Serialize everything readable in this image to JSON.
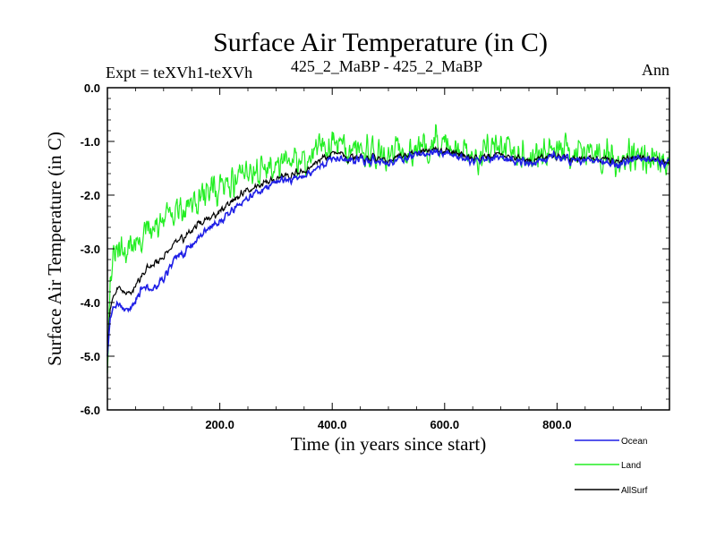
{
  "chart_data": {
    "type": "line",
    "title": "Surface Air Temperature (in C)",
    "subtitle_left": "Expt = teXVh1-teXVh",
    "subtitle_center": "425_2_MaBP - 425_2_MaBP",
    "subtitle_right": "Ann",
    "xlabel": "Time (in years since start)",
    "ylabel": "Surface Air Temperature (in C)",
    "xlim": [
      0,
      1000
    ],
    "ylim": [
      -6.0,
      0.0
    ],
    "xticks": [
      200,
      400,
      600,
      800
    ],
    "xtick_labels": [
      "200.0",
      "400.0",
      "600.0",
      "800.0"
    ],
    "yticks": [
      0,
      -1,
      -2,
      -3,
      -4,
      -5,
      -6
    ],
    "ytick_labels": [
      "0.0",
      "-1.0",
      "-2.0",
      "-3.0",
      "-4.0",
      "-5.0",
      "-6.0"
    ],
    "legend_position": "bottom-right, below plot",
    "series": [
      {
        "name": "AllSurf",
        "color": "#000000",
        "x": [
          0,
          5,
          10,
          20,
          30,
          40,
          50,
          60,
          80,
          100,
          120,
          150,
          175,
          200,
          250,
          300,
          350,
          400,
          450,
          500,
          550,
          600,
          650,
          700,
          750,
          800,
          850,
          900,
          950,
          1000
        ],
        "values": [
          -4.9,
          -4.1,
          -3.9,
          -3.75,
          -3.8,
          -3.85,
          -3.7,
          -3.5,
          -3.3,
          -3.15,
          -2.9,
          -2.65,
          -2.45,
          -2.3,
          -1.9,
          -1.7,
          -1.55,
          -1.2,
          -1.3,
          -1.35,
          -1.2,
          -1.15,
          -1.3,
          -1.25,
          -1.35,
          -1.3,
          -1.3,
          -1.35,
          -1.3,
          -1.4
        ]
      },
      {
        "name": "Ocean",
        "color": "#1f1fe6",
        "x": [
          0,
          5,
          10,
          20,
          30,
          40,
          50,
          60,
          80,
          100,
          120,
          150,
          175,
          200,
          250,
          300,
          350,
          400,
          450,
          500,
          550,
          600,
          650,
          700,
          750,
          800,
          850,
          900,
          950,
          1000
        ],
        "values": [
          -5.0,
          -4.3,
          -4.1,
          -4.05,
          -4.1,
          -4.15,
          -4.0,
          -3.7,
          -3.8,
          -3.55,
          -3.2,
          -2.95,
          -2.65,
          -2.5,
          -2.05,
          -1.75,
          -1.65,
          -1.3,
          -1.35,
          -1.4,
          -1.25,
          -1.2,
          -1.35,
          -1.3,
          -1.4,
          -1.3,
          -1.35,
          -1.4,
          -1.3,
          -1.4
        ]
      },
      {
        "name": "Land",
        "color": "#22ee22",
        "x": [
          0,
          5,
          10,
          20,
          30,
          40,
          50,
          60,
          80,
          100,
          120,
          150,
          175,
          200,
          250,
          300,
          350,
          400,
          450,
          500,
          550,
          600,
          650,
          700,
          750,
          800,
          850,
          900,
          950,
          1000
        ],
        "values": [
          -5.2,
          -3.6,
          -3.2,
          -3.1,
          -3.0,
          -2.95,
          -2.9,
          -2.8,
          -2.7,
          -2.45,
          -2.3,
          -2.1,
          -1.95,
          -1.9,
          -1.55,
          -1.45,
          -1.35,
          -1.0,
          -1.2,
          -1.25,
          -1.1,
          -1.0,
          -1.2,
          -1.1,
          -1.3,
          -1.2,
          -1.2,
          -1.3,
          -1.25,
          -1.35
        ]
      }
    ],
    "legend": [
      {
        "name": "Ocean",
        "color": "#1f1fe6"
      },
      {
        "name": "Land",
        "color": "#22ee22"
      },
      {
        "name": "AllSurf",
        "color": "#000000"
      }
    ]
  }
}
